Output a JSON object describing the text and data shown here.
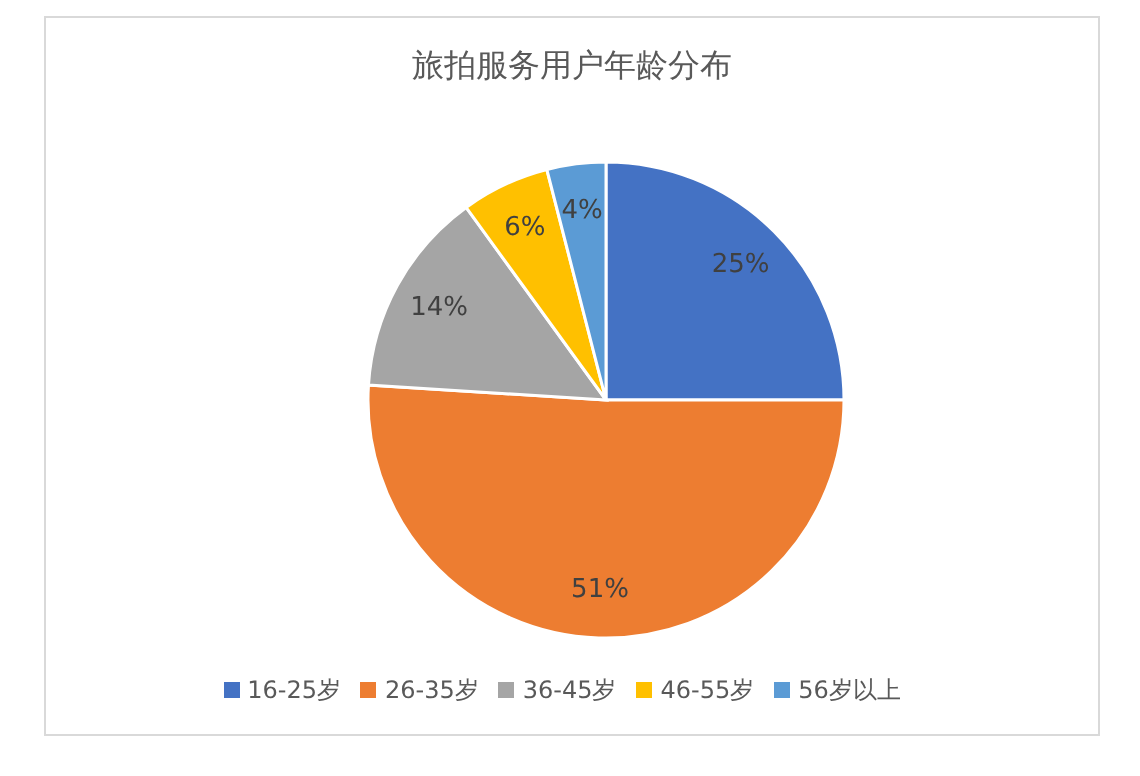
{
  "chart_data": {
    "type": "pie",
    "title": "旅拍服务用户年龄分布",
    "categories": [
      "16-25岁",
      "26-35岁",
      "36-45岁",
      "46-55岁",
      "56岁以上"
    ],
    "values": [
      25,
      51,
      14,
      6,
      4
    ],
    "colors": [
      "#4472c4",
      "#ed7d31",
      "#a5a5a5",
      "#ffc000",
      "#5b9bd5"
    ],
    "value_labels": [
      "25%",
      "51%",
      "14%",
      "6%",
      "4%"
    ],
    "legend": "bottom"
  }
}
